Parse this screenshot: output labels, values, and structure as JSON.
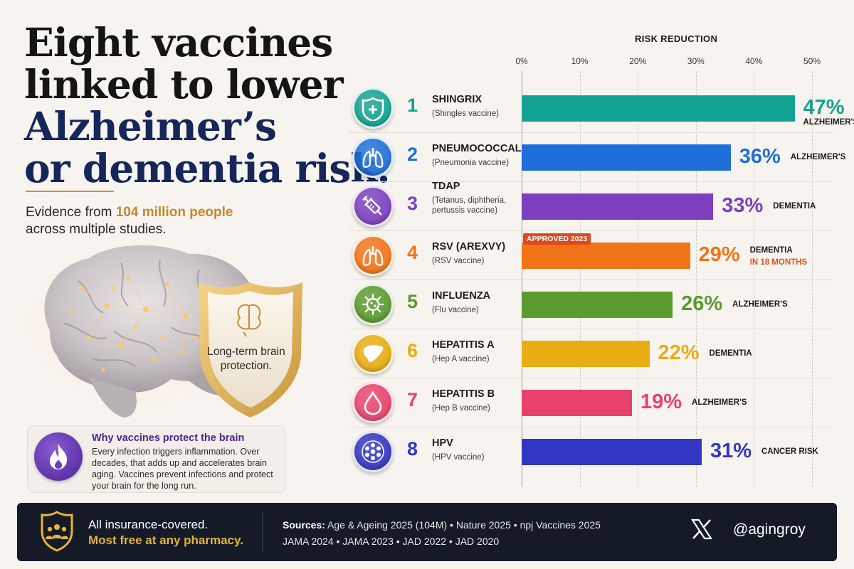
{
  "title": {
    "line1": "Eight vaccines",
    "line2": "linked to lower",
    "line3": "Alzheimer’s",
    "line4": "or dementia risk."
  },
  "subtitle": {
    "pre": "Evidence from ",
    "highlight": "104 million people",
    "post": "across multiple studies."
  },
  "shield_label": "Long-term brain protection.",
  "why": {
    "title": "Why vaccines protect the brain",
    "text": "Every infection triggers inflammation. Over decades, that adds up and accelerates brain aging. Vaccines prevent infections and protect your brain for the long run."
  },
  "chart_data": {
    "type": "bar",
    "orientation": "horizontal",
    "title": "RISK REDUCTION",
    "xlim": [
      0,
      50
    ],
    "ticks": [
      "0%",
      "10%",
      "20%",
      "30%",
      "40%",
      "50%"
    ],
    "grid": true,
    "rows": [
      {
        "rank": "1",
        "name": "SHINGRIX",
        "desc": "(Shingles vaccine)",
        "value": 47,
        "label": "47%",
        "type": "ALZHEIMER'S",
        "color": "#14a294",
        "icon": "shield-plus-icon"
      },
      {
        "rank": "2",
        "name": "PNEUMOCOCCAL",
        "desc": "(Pneumonia vaccine)",
        "value": 36,
        "label": "36%",
        "type": "ALZHEIMER'S",
        "color": "#1e6fd9",
        "icon": "lungs-icon"
      },
      {
        "rank": "3",
        "name": "TDAP",
        "desc": "(Tetanus, diphtheria, pertussis vaccine)",
        "value": 33,
        "label": "33%",
        "type": "DEMENTIA",
        "color": "#7b3fbf",
        "icon": "syringe-icon"
      },
      {
        "rank": "4",
        "name": "RSV (AREXVY)",
        "desc": "(RSV vaccine)",
        "value": 29,
        "label": "29%",
        "type": "DEMENTIA",
        "note": "IN 18 MONTHS",
        "badge": "APPROVED 2023",
        "color": "#f07417",
        "icon": "lungs-icon"
      },
      {
        "rank": "5",
        "name": "INFLUENZA",
        "desc": "(Flu vaccine)",
        "value": 26,
        "label": "26%",
        "type": "ALZHEIMER'S",
        "color": "#5a9a2e",
        "icon": "virus-icon"
      },
      {
        "rank": "6",
        "name": "HEPATITIS A",
        "desc": "(Hep A vaccine)",
        "value": 22,
        "label": "22%",
        "type": "DEMENTIA",
        "color": "#e8ad12",
        "icon": "liver-icon"
      },
      {
        "rank": "7",
        "name": "HEPATITIS B",
        "desc": "(Hep B vaccine)",
        "value": 19,
        "label": "19%",
        "type": "ALZHEIMER'S",
        "color": "#e8426c",
        "icon": "drop-icon"
      },
      {
        "rank": "8",
        "name": "HPV",
        "desc": "(HPV vaccine)",
        "value": 31,
        "label": "31%",
        "type": "CANCER RISK",
        "color": "#3236c4",
        "icon": "hpv-virus-icon"
      }
    ]
  },
  "footer": {
    "line1": "All insurance-covered.",
    "line2": "Most free at any pharmacy.",
    "sources_label": "Sources:",
    "sources_line1": " Age & Ageing 2025 (104M)  •  Nature 2025  •  npj Vaccines 2025",
    "sources_line2": "JAMA 2024  •  JAMA 2023  •  JAD 2022  •  JAD 2020",
    "handle": "@agingroy"
  }
}
